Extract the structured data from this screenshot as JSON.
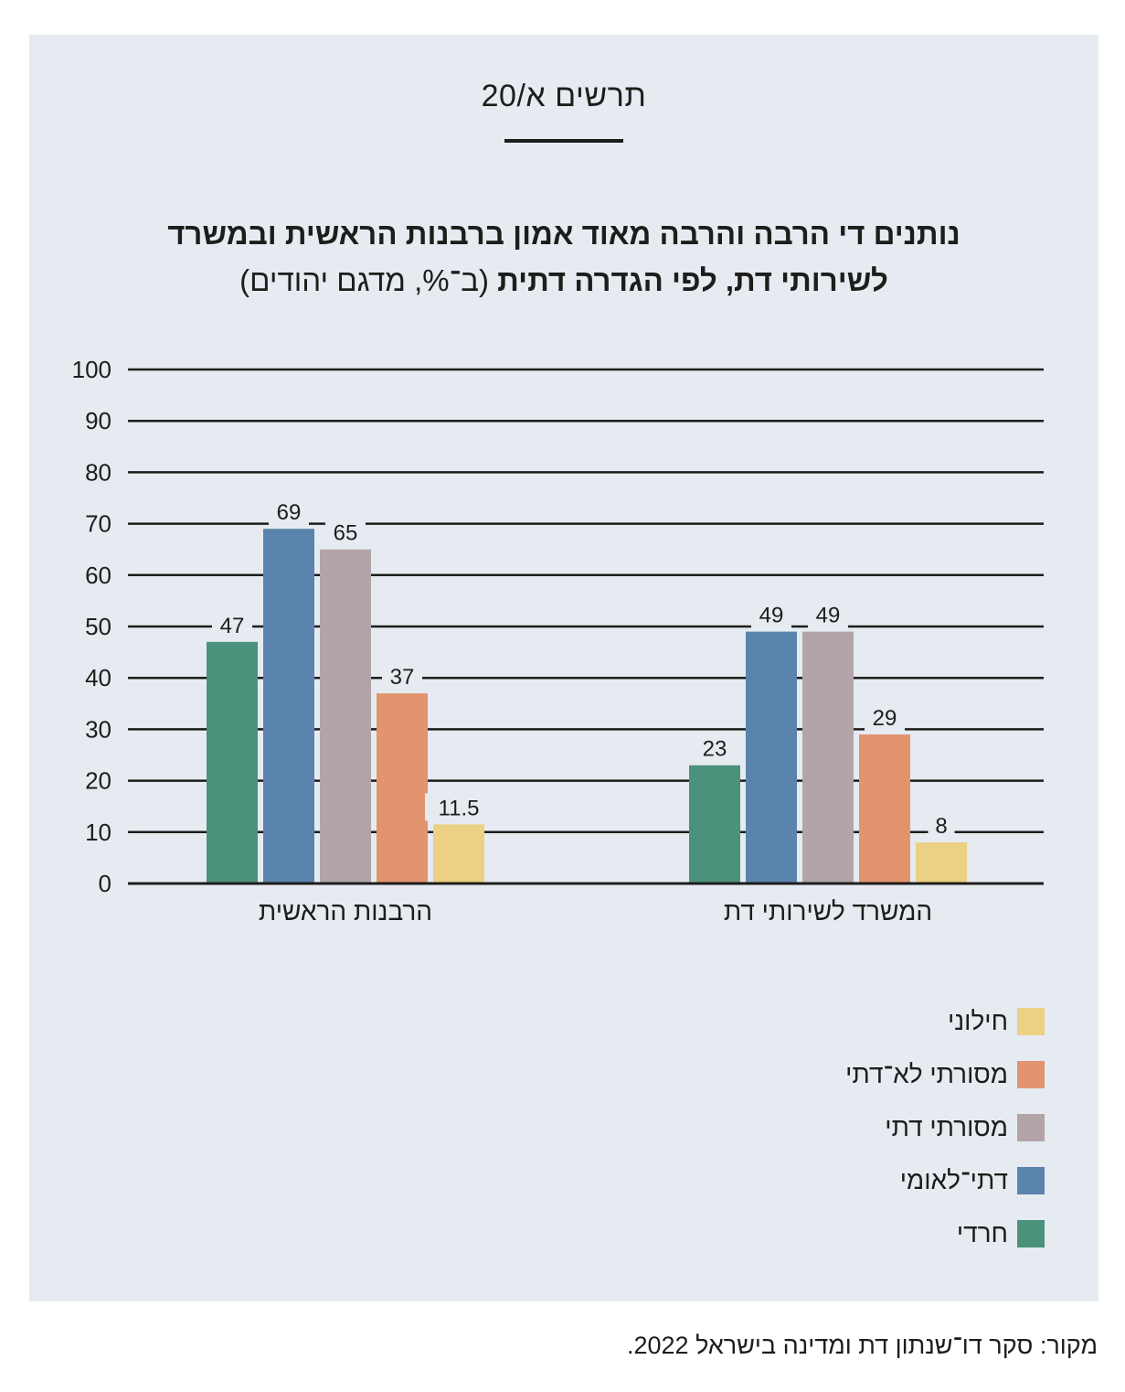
{
  "figure_label": "תרשים א/20",
  "title": {
    "line1": "נותנים די הרבה והרבה מאוד אמון ברבנות הראשית ובמשרד",
    "line2_bold": "לשירותי דת, לפי הגדרה דתית",
    "line2_light": " (ב־%, מדגם יהודים)"
  },
  "source": "מקור: סקר דו־שנתון דת ומדינה בישראל 2022.",
  "chart_data": {
    "type": "bar",
    "title": "נותנים די הרבה והרבה מאוד אמון ברבנות הראשית ובמשרד לשירותי דת, לפי הגדרה דתית (ב־%, מדגם יהודים)",
    "categories": [
      "הרבנות הראשית",
      "המשרד לשירותי דת"
    ],
    "series": [
      {
        "name": "חרדי",
        "color": "#4b917b",
        "values": [
          47,
          23
        ],
        "labels": [
          "47",
          "23"
        ]
      },
      {
        "name": "דתי־לאומי",
        "color": "#5a84ad",
        "values": [
          69,
          49
        ],
        "labels": [
          "69",
          "49"
        ]
      },
      {
        "name": "מסורתי דתי",
        "color": "#b2a4a8",
        "values": [
          65,
          49
        ],
        "labels": [
          "65",
          "49"
        ]
      },
      {
        "name": "מסורתי לא־דתי",
        "color": "#e2946f",
        "values": [
          37,
          29
        ],
        "labels": [
          "37",
          "29"
        ]
      },
      {
        "name": "חילוני",
        "color": "#ecd083",
        "values": [
          11.5,
          8
        ],
        "labels": [
          "11.5",
          "8"
        ]
      }
    ],
    "yticks": [
      "0",
      "10",
      "20",
      "30",
      "40",
      "50",
      "60",
      "70",
      "80",
      "90",
      "100"
    ],
    "ylim": [
      0,
      100
    ],
    "grid": true,
    "legend_position": "bottom-right",
    "legend_order": [
      "חילוני",
      "מסורתי לא־דתי",
      "מסורתי דתי",
      "דתי־לאומי",
      "חרדי"
    ]
  }
}
